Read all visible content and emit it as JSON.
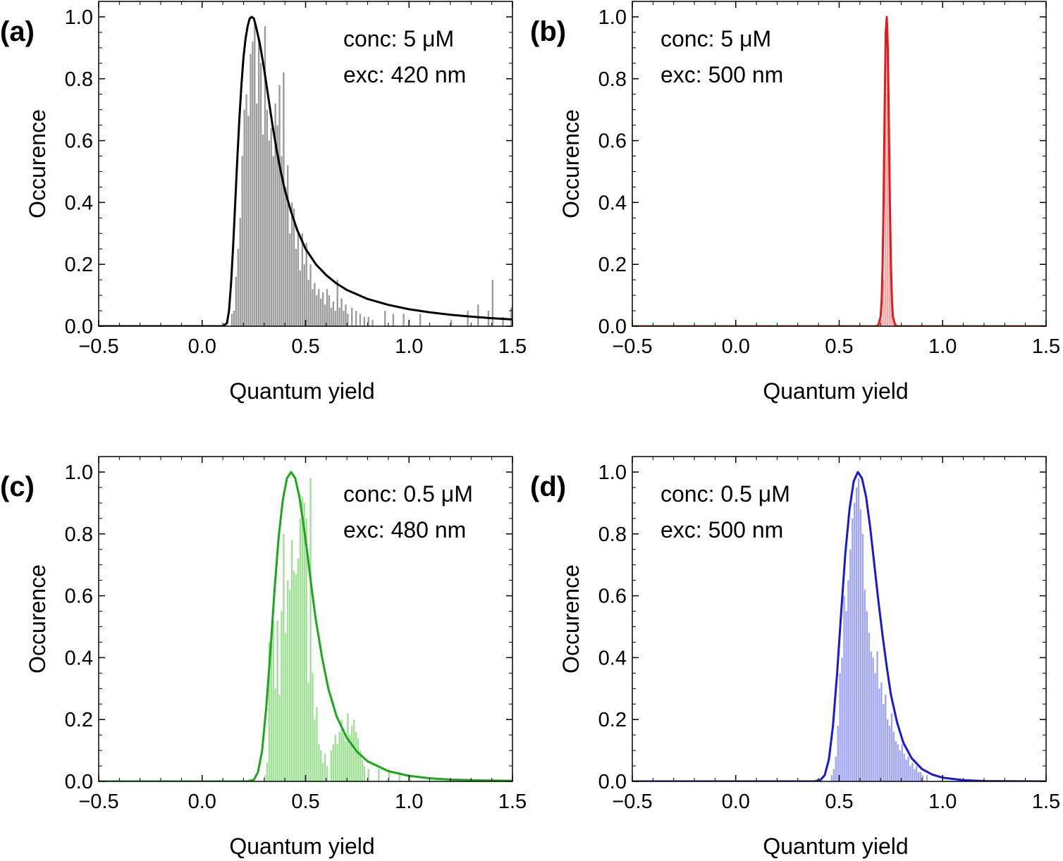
{
  "chart_data": [
    {
      "panel": "(a)",
      "type": "bar",
      "subtype": "histogram with fitted curve",
      "xlabel": "Quantum yield",
      "ylabel": "Occurence",
      "xlim": [
        -0.5,
        1.5
      ],
      "ylim": [
        0,
        1.05
      ],
      "xticks": [
        -0.5,
        0.0,
        0.5,
        1.0,
        1.5
      ],
      "xtick_labels": [
        "−0.5",
        "0.0",
        "0.5",
        "1.0",
        "1.5"
      ],
      "yticks": [
        0,
        0.2,
        0.4,
        0.6,
        0.8,
        1.0
      ],
      "ytick_labels": [
        "0.0",
        "0.2",
        "0.4",
        "0.6",
        "0.8",
        "1.0"
      ],
      "annotations": [
        "conc: 5 μM",
        "exc: 420 nm"
      ],
      "bar_color": "#9b9b9b",
      "curve_color": "#000000",
      "bin_width": 0.01,
      "bars": [
        [
          0.14,
          0.04
        ],
        [
          0.15,
          0.05
        ],
        [
          0.16,
          0.16
        ],
        [
          0.17,
          0.25
        ],
        [
          0.18,
          0.35
        ],
        [
          0.19,
          0.55
        ],
        [
          0.2,
          0.7
        ],
        [
          0.21,
          0.75
        ],
        [
          0.22,
          0.68
        ],
        [
          0.23,
          0.88
        ],
        [
          0.24,
          0.92
        ],
        [
          0.25,
          0.98
        ],
        [
          0.26,
          0.72
        ],
        [
          0.27,
          0.93
        ],
        [
          0.28,
          0.85
        ],
        [
          0.29,
          0.62
        ],
        [
          0.3,
          0.97
        ],
        [
          0.31,
          0.7
        ],
        [
          0.32,
          0.6
        ],
        [
          0.33,
          0.64
        ],
        [
          0.34,
          0.55
        ],
        [
          0.35,
          0.72
        ],
        [
          0.36,
          0.65
        ],
        [
          0.37,
          0.78
        ],
        [
          0.38,
          0.55
        ],
        [
          0.39,
          0.82
        ],
        [
          0.4,
          0.45
        ],
        [
          0.41,
          0.52
        ],
        [
          0.42,
          0.3
        ],
        [
          0.43,
          0.4
        ],
        [
          0.44,
          0.38
        ],
        [
          0.45,
          0.25
        ],
        [
          0.46,
          0.3
        ],
        [
          0.47,
          0.18
        ],
        [
          0.48,
          0.3
        ],
        [
          0.49,
          0.2
        ],
        [
          0.5,
          0.27
        ],
        [
          0.51,
          0.15
        ],
        [
          0.52,
          0.2
        ],
        [
          0.53,
          0.12
        ],
        [
          0.54,
          0.14
        ],
        [
          0.55,
          0.1
        ],
        [
          0.56,
          0.12
        ],
        [
          0.57,
          0.09
        ],
        [
          0.58,
          0.11
        ],
        [
          0.59,
          0.07
        ],
        [
          0.6,
          0.12
        ],
        [
          0.61,
          0.1
        ],
        [
          0.62,
          0.06
        ],
        [
          0.63,
          0.08
        ],
        [
          0.64,
          0.05
        ],
        [
          0.65,
          0.15
        ],
        [
          0.66,
          0.06
        ],
        [
          0.67,
          0.09
        ],
        [
          0.68,
          0.05
        ],
        [
          0.69,
          0.07
        ],
        [
          0.7,
          0.04
        ],
        [
          0.72,
          0.06
        ],
        [
          0.74,
          0.05
        ],
        [
          0.76,
          0.04
        ],
        [
          0.78,
          0.03
        ],
        [
          0.8,
          0.03
        ],
        [
          0.82,
          0.02
        ],
        [
          0.88,
          0.05
        ],
        [
          0.92,
          0.04
        ],
        [
          0.97,
          0.04
        ],
        [
          1.05,
          0.04
        ],
        [
          1.2,
          0.02
        ],
        [
          1.28,
          0.05
        ],
        [
          1.33,
          0.07
        ],
        [
          1.38,
          0.05
        ],
        [
          1.4,
          0.15
        ],
        [
          1.45,
          0.03
        ],
        [
          1.49,
          0.06
        ]
      ],
      "fit_curve": [
        [
          -0.5,
          0.0
        ],
        [
          0.1,
          0.0
        ],
        [
          0.12,
          0.01
        ],
        [
          0.13,
          0.05
        ],
        [
          0.14,
          0.14
        ],
        [
          0.15,
          0.26
        ],
        [
          0.16,
          0.4
        ],
        [
          0.17,
          0.54
        ],
        [
          0.18,
          0.67
        ],
        [
          0.19,
          0.78
        ],
        [
          0.2,
          0.87
        ],
        [
          0.21,
          0.93
        ],
        [
          0.22,
          0.97
        ],
        [
          0.23,
          0.995
        ],
        [
          0.24,
          1.0
        ],
        [
          0.25,
          0.995
        ],
        [
          0.26,
          0.97
        ],
        [
          0.28,
          0.91
        ],
        [
          0.3,
          0.83
        ],
        [
          0.32,
          0.74
        ],
        [
          0.34,
          0.65
        ],
        [
          0.36,
          0.57
        ],
        [
          0.38,
          0.5
        ],
        [
          0.4,
          0.44
        ],
        [
          0.43,
          0.37
        ],
        [
          0.46,
          0.31
        ],
        [
          0.5,
          0.25
        ],
        [
          0.55,
          0.2
        ],
        [
          0.6,
          0.165
        ],
        [
          0.65,
          0.138
        ],
        [
          0.7,
          0.117
        ],
        [
          0.8,
          0.088
        ],
        [
          0.9,
          0.069
        ],
        [
          1.0,
          0.055
        ],
        [
          1.1,
          0.045
        ],
        [
          1.2,
          0.037
        ],
        [
          1.3,
          0.031
        ],
        [
          1.4,
          0.026
        ],
        [
          1.5,
          0.022
        ]
      ]
    },
    {
      "panel": "(b)",
      "type": "bar",
      "subtype": "histogram with fitted curve",
      "xlabel": "Quantum yield",
      "ylabel": "Occurence",
      "xlim": [
        -0.5,
        1.5
      ],
      "ylim": [
        0,
        1.05
      ],
      "xticks": [
        -0.5,
        0.0,
        0.5,
        1.0,
        1.5
      ],
      "xtick_labels": [
        "−0.5",
        "0.0",
        "0.5",
        "1.0",
        "1.5"
      ],
      "yticks": [
        0,
        0.2,
        0.4,
        0.6,
        0.8,
        1.0
      ],
      "ytick_labels": [
        "0.0",
        "0.2",
        "0.4",
        "0.6",
        "0.8",
        "1.0"
      ],
      "annotations": [
        "conc: 5 μM",
        "exc: 500 nm"
      ],
      "bar_color": "#f7a5a5",
      "curve_color": "#e41a1a",
      "bin_width": 0.01,
      "bars": [
        [
          0.7,
          0.02
        ],
        [
          0.71,
          0.15
        ],
        [
          0.72,
          0.75
        ],
        [
          0.73,
          0.98
        ],
        [
          0.74,
          0.55
        ],
        [
          0.75,
          0.08
        ],
        [
          0.76,
          0.02
        ]
      ],
      "fit_curve": [
        [
          -0.5,
          0.0
        ],
        [
          0.68,
          0.0
        ],
        [
          0.69,
          0.005
        ],
        [
          0.7,
          0.03
        ],
        [
          0.705,
          0.08
        ],
        [
          0.71,
          0.2
        ],
        [
          0.715,
          0.42
        ],
        [
          0.72,
          0.72
        ],
        [
          0.725,
          0.95
        ],
        [
          0.73,
          1.0
        ],
        [
          0.735,
          0.9
        ],
        [
          0.74,
          0.66
        ],
        [
          0.745,
          0.4
        ],
        [
          0.75,
          0.2
        ],
        [
          0.755,
          0.08
        ],
        [
          0.76,
          0.03
        ],
        [
          0.77,
          0.005
        ],
        [
          0.78,
          0.0
        ],
        [
          1.5,
          0.0
        ]
      ]
    },
    {
      "panel": "(c)",
      "type": "bar",
      "subtype": "histogram with fitted curve",
      "xlabel": "Quantum yield",
      "ylabel": "Occurence",
      "xlim": [
        -0.5,
        1.5
      ],
      "ylim": [
        0,
        1.05
      ],
      "xticks": [
        -0.5,
        0.0,
        0.5,
        1.0,
        1.5
      ],
      "xtick_labels": [
        "−0.5",
        "0.0",
        "0.5",
        "1.0",
        "1.5"
      ],
      "yticks": [
        0,
        0.2,
        0.4,
        0.6,
        0.8,
        1.0
      ],
      "ytick_labels": [
        "0.0",
        "0.2",
        "0.4",
        "0.6",
        "0.8",
        "1.0"
      ],
      "annotations": [
        "conc: 0.5 μM",
        "exc: 480 nm"
      ],
      "bar_color": "#9fdf96",
      "curve_color": "#1aa81a",
      "bin_width": 0.01,
      "bars": [
        [
          0.3,
          0.02
        ],
        [
          0.31,
          0.06
        ],
        [
          0.32,
          0.45
        ],
        [
          0.33,
          0.48
        ],
        [
          0.34,
          0.52
        ],
        [
          0.35,
          0.3
        ],
        [
          0.36,
          0.52
        ],
        [
          0.37,
          0.28
        ],
        [
          0.38,
          0.55
        ],
        [
          0.39,
          0.8
        ],
        [
          0.4,
          0.48
        ],
        [
          0.41,
          0.65
        ],
        [
          0.42,
          0.62
        ],
        [
          0.43,
          0.78
        ],
        [
          0.44,
          0.68
        ],
        [
          0.45,
          0.67
        ],
        [
          0.46,
          0.72
        ],
        [
          0.47,
          0.85
        ],
        [
          0.48,
          0.92
        ],
        [
          0.49,
          0.9
        ],
        [
          0.5,
          0.85
        ],
        [
          0.51,
          0.32
        ],
        [
          0.52,
          0.98
        ],
        [
          0.53,
          0.35
        ],
        [
          0.54,
          0.2
        ],
        [
          0.55,
          0.24
        ],
        [
          0.56,
          0.12
        ],
        [
          0.57,
          0.1
        ],
        [
          0.58,
          0.06
        ],
        [
          0.59,
          0.09
        ],
        [
          0.6,
          0.05
        ],
        [
          0.62,
          0.1
        ],
        [
          0.63,
          0.12
        ],
        [
          0.64,
          0.15
        ],
        [
          0.65,
          0.12
        ],
        [
          0.66,
          0.16
        ],
        [
          0.67,
          0.2
        ],
        [
          0.68,
          0.17
        ],
        [
          0.69,
          0.13
        ],
        [
          0.7,
          0.22
        ],
        [
          0.71,
          0.15
        ],
        [
          0.72,
          0.18
        ],
        [
          0.73,
          0.2
        ],
        [
          0.74,
          0.16
        ],
        [
          0.75,
          0.14
        ],
        [
          0.76,
          0.1
        ],
        [
          0.77,
          0.07
        ],
        [
          0.78,
          0.05
        ],
        [
          0.8,
          0.04
        ],
        [
          0.85,
          0.04
        ],
        [
          0.9,
          0.04
        ],
        [
          0.95,
          0.03
        ],
        [
          1.0,
          0.02
        ]
      ],
      "fit_curve": [
        [
          -0.5,
          0.0
        ],
        [
          0.22,
          0.0
        ],
        [
          0.25,
          0.005
        ],
        [
          0.27,
          0.03
        ],
        [
          0.29,
          0.1
        ],
        [
          0.31,
          0.24
        ],
        [
          0.33,
          0.42
        ],
        [
          0.35,
          0.62
        ],
        [
          0.37,
          0.79
        ],
        [
          0.39,
          0.91
        ],
        [
          0.41,
          0.98
        ],
        [
          0.43,
          1.0
        ],
        [
          0.45,
          0.98
        ],
        [
          0.47,
          0.92
        ],
        [
          0.49,
          0.83
        ],
        [
          0.51,
          0.73
        ],
        [
          0.53,
          0.62
        ],
        [
          0.55,
          0.52
        ],
        [
          0.58,
          0.4
        ],
        [
          0.61,
          0.3
        ],
        [
          0.65,
          0.21
        ],
        [
          0.7,
          0.14
        ],
        [
          0.75,
          0.095
        ],
        [
          0.8,
          0.065
        ],
        [
          0.9,
          0.033
        ],
        [
          1.0,
          0.018
        ],
        [
          1.1,
          0.01
        ],
        [
          1.2,
          0.006
        ],
        [
          1.35,
          0.003
        ],
        [
          1.5,
          0.002
        ]
      ]
    },
    {
      "panel": "(d)",
      "type": "bar",
      "subtype": "histogram with fitted curve",
      "xlabel": "Quantum yield",
      "ylabel": "Occurence",
      "xlim": [
        -0.5,
        1.5
      ],
      "ylim": [
        0,
        1.05
      ],
      "xticks": [
        -0.5,
        0.0,
        0.5,
        1.0,
        1.5
      ],
      "xtick_labels": [
        "−0.5",
        "0.0",
        "0.5",
        "1.0",
        "1.5"
      ],
      "yticks": [
        0,
        0.2,
        0.4,
        0.6,
        0.8,
        1.0
      ],
      "ytick_labels": [
        "0.0",
        "0.2",
        "0.4",
        "0.6",
        "0.8",
        "1.0"
      ],
      "annotations": [
        "conc: 0.5 μM",
        "exc: 500 nm"
      ],
      "bar_color": "#a0a4f5",
      "curve_color": "#1818d8",
      "bin_width": 0.01,
      "bars": [
        [
          0.46,
          0.02
        ],
        [
          0.47,
          0.04
        ],
        [
          0.48,
          0.08
        ],
        [
          0.49,
          0.18
        ],
        [
          0.5,
          0.35
        ],
        [
          0.51,
          0.4
        ],
        [
          0.52,
          0.6
        ],
        [
          0.53,
          0.55
        ],
        [
          0.54,
          0.65
        ],
        [
          0.55,
          0.75
        ],
        [
          0.56,
          0.85
        ],
        [
          0.57,
          0.9
        ],
        [
          0.58,
          0.95
        ],
        [
          0.59,
          0.98
        ],
        [
          0.6,
          0.88
        ],
        [
          0.61,
          0.8
        ],
        [
          0.62,
          0.62
        ],
        [
          0.63,
          0.55
        ],
        [
          0.64,
          0.48
        ],
        [
          0.65,
          0.42
        ],
        [
          0.66,
          0.4
        ],
        [
          0.67,
          0.35
        ],
        [
          0.68,
          0.42
        ],
        [
          0.69,
          0.3
        ],
        [
          0.7,
          0.32
        ],
        [
          0.71,
          0.25
        ],
        [
          0.72,
          0.28
        ],
        [
          0.73,
          0.2
        ],
        [
          0.74,
          0.18
        ],
        [
          0.75,
          0.22
        ],
        [
          0.76,
          0.16
        ],
        [
          0.77,
          0.13
        ],
        [
          0.78,
          0.12
        ],
        [
          0.79,
          0.1
        ],
        [
          0.8,
          0.12
        ],
        [
          0.81,
          0.09
        ],
        [
          0.82,
          0.07
        ],
        [
          0.83,
          0.08
        ],
        [
          0.84,
          0.05
        ],
        [
          0.85,
          0.06
        ],
        [
          0.86,
          0.04
        ],
        [
          0.87,
          0.05
        ],
        [
          0.88,
          0.03
        ],
        [
          0.89,
          0.03
        ],
        [
          0.9,
          0.02
        ],
        [
          0.92,
          0.02
        ]
      ],
      "fit_curve": [
        [
          -0.5,
          0.0
        ],
        [
          0.38,
          0.0
        ],
        [
          0.41,
          0.005
        ],
        [
          0.43,
          0.02
        ],
        [
          0.45,
          0.07
        ],
        [
          0.47,
          0.18
        ],
        [
          0.49,
          0.35
        ],
        [
          0.51,
          0.55
        ],
        [
          0.53,
          0.74
        ],
        [
          0.55,
          0.88
        ],
        [
          0.57,
          0.97
        ],
        [
          0.59,
          1.0
        ],
        [
          0.61,
          0.98
        ],
        [
          0.63,
          0.92
        ],
        [
          0.65,
          0.82
        ],
        [
          0.67,
          0.7
        ],
        [
          0.69,
          0.58
        ],
        [
          0.71,
          0.47
        ],
        [
          0.73,
          0.37
        ],
        [
          0.75,
          0.28
        ],
        [
          0.78,
          0.19
        ],
        [
          0.81,
          0.125
        ],
        [
          0.85,
          0.075
        ],
        [
          0.9,
          0.04
        ],
        [
          0.95,
          0.022
        ],
        [
          1.0,
          0.012
        ],
        [
          1.1,
          0.004
        ],
        [
          1.2,
          0.001
        ],
        [
          1.5,
          0.0
        ]
      ]
    }
  ]
}
